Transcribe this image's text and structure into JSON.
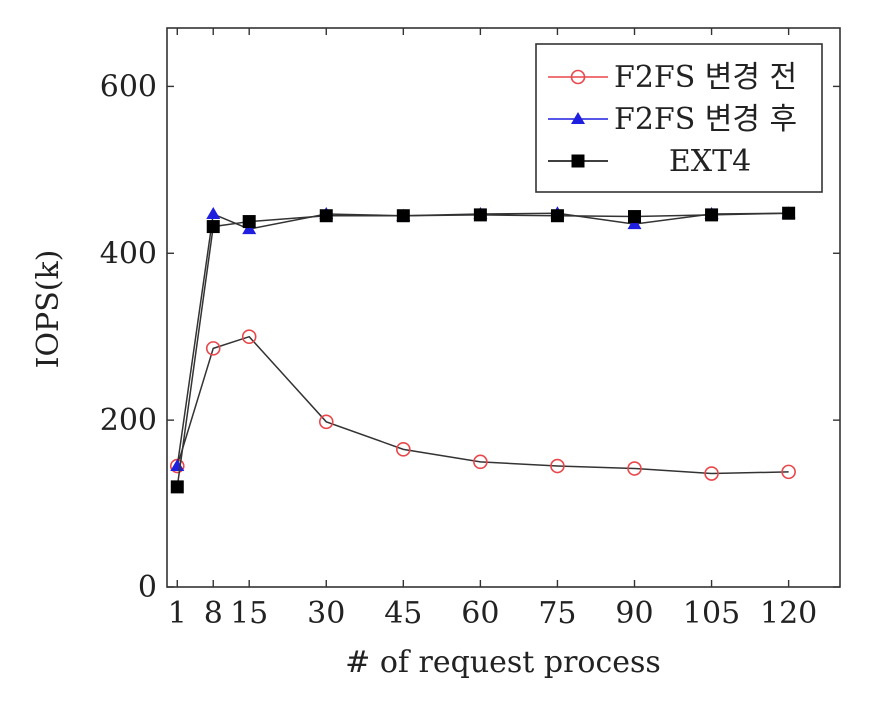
{
  "chart_data": {
    "type": "line",
    "title": "",
    "xlabel": "# of request process",
    "ylabel": "IOPS(k)",
    "x": [
      1,
      8,
      15,
      30,
      45,
      60,
      75,
      90,
      105,
      120
    ],
    "xlim": [
      -1,
      130
    ],
    "ylim": [
      0,
      670
    ],
    "yticks": [
      0,
      200,
      400,
      600
    ],
    "grid": false,
    "legend_position": "top-right",
    "series": [
      {
        "name": "F2FS 변경 전",
        "color": "#e8474b",
        "marker": "circle-open",
        "values": [
          145,
          286,
          300,
          198,
          165,
          150,
          145,
          142,
          136,
          138
        ]
      },
      {
        "name": "F2FS 변경 후",
        "color": "#1f1fe0",
        "marker": "triangle-filled",
        "values": [
          145,
          447,
          429,
          447,
          445,
          447,
          448,
          435,
          447,
          448
        ]
      },
      {
        "name": "EXT4",
        "color": "#000000",
        "marker": "square-filled",
        "values": [
          120,
          432,
          438,
          445,
          445,
          446,
          445,
          444,
          446,
          448
        ]
      }
    ]
  }
}
